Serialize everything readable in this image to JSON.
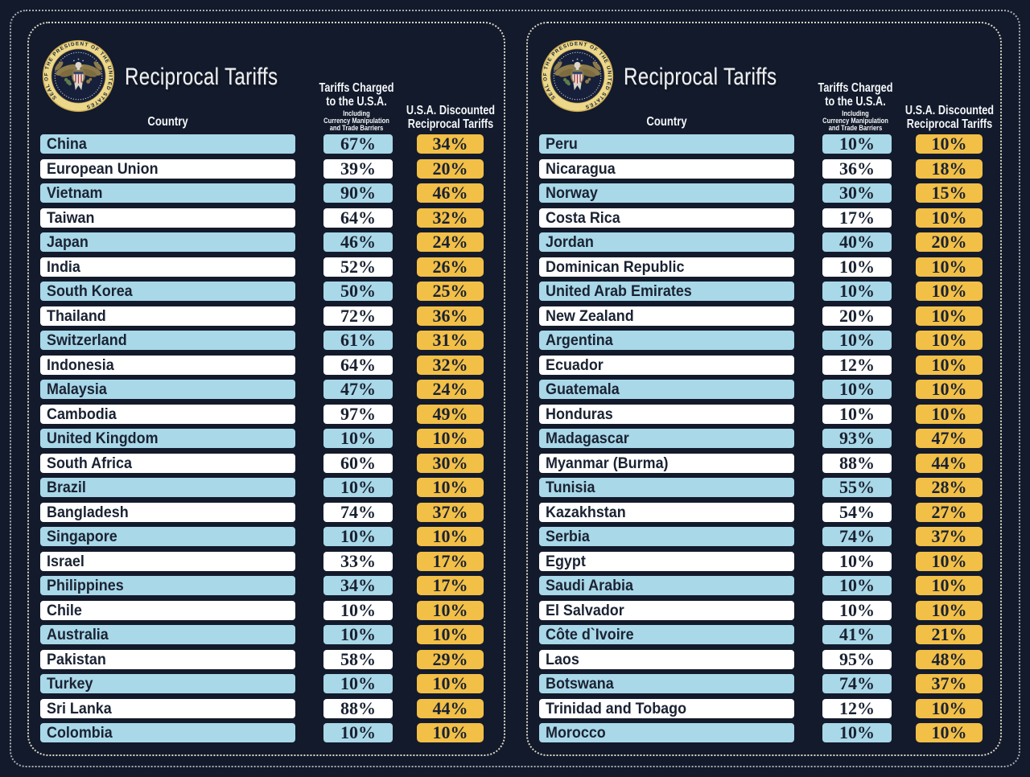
{
  "title": "Reciprocal Tariffs",
  "header": {
    "country": "Country",
    "tariffs_charged": [
      "Tariffs Charged",
      "to the U.S.A."
    ],
    "tariffs_charged_sub": [
      "Including",
      "Currency Manipulation",
      "and Trade Barriers"
    ],
    "discounted": [
      "U.S.A. Discounted",
      "Reciprocal Tariffs"
    ]
  },
  "seal": {
    "ring_text": "SEAL OF THE PRESIDENT OF THE UNITED STATES"
  },
  "colors": {
    "background": "#121a2b",
    "row_blue": "#a9d8e8",
    "row_white": "#ffffff",
    "gold": "#f2bf47",
    "text_navy": "#1a2232",
    "title_silver": "#eef0f2"
  },
  "chart_data": [
    {
      "type": "table",
      "title": "Reciprocal Tariffs",
      "columns": [
        "Country",
        "Tariffs Charged to the U.S.A. Including Currency Manipulation and Trade Barriers",
        "U.S.A. Discounted Reciprocal Tariffs"
      ],
      "rows": [
        [
          "China",
          "67%",
          "34%"
        ],
        [
          "European Union",
          "39%",
          "20%"
        ],
        [
          "Vietnam",
          "90%",
          "46%"
        ],
        [
          "Taiwan",
          "64%",
          "32%"
        ],
        [
          "Japan",
          "46%",
          "24%"
        ],
        [
          "India",
          "52%",
          "26%"
        ],
        [
          "South Korea",
          "50%",
          "25%"
        ],
        [
          "Thailand",
          "72%",
          "36%"
        ],
        [
          "Switzerland",
          "61%",
          "31%"
        ],
        [
          "Indonesia",
          "64%",
          "32%"
        ],
        [
          "Malaysia",
          "47%",
          "24%"
        ],
        [
          "Cambodia",
          "97%",
          "49%"
        ],
        [
          "United Kingdom",
          "10%",
          "10%"
        ],
        [
          "South Africa",
          "60%",
          "30%"
        ],
        [
          "Brazil",
          "10%",
          "10%"
        ],
        [
          "Bangladesh",
          "74%",
          "37%"
        ],
        [
          "Singapore",
          "10%",
          "10%"
        ],
        [
          "Israel",
          "33%",
          "17%"
        ],
        [
          "Philippines",
          "34%",
          "17%"
        ],
        [
          "Chile",
          "10%",
          "10%"
        ],
        [
          "Australia",
          "10%",
          "10%"
        ],
        [
          "Pakistan",
          "58%",
          "29%"
        ],
        [
          "Turkey",
          "10%",
          "10%"
        ],
        [
          "Sri Lanka",
          "88%",
          "44%"
        ],
        [
          "Colombia",
          "10%",
          "10%"
        ]
      ]
    },
    {
      "type": "table",
      "title": "Reciprocal Tariffs",
      "columns": [
        "Country",
        "Tariffs Charged to the U.S.A. Including Currency Manipulation and Trade Barriers",
        "U.S.A. Discounted Reciprocal Tariffs"
      ],
      "rows": [
        [
          "Peru",
          "10%",
          "10%"
        ],
        [
          "Nicaragua",
          "36%",
          "18%"
        ],
        [
          "Norway",
          "30%",
          "15%"
        ],
        [
          "Costa Rica",
          "17%",
          "10%"
        ],
        [
          "Jordan",
          "40%",
          "20%"
        ],
        [
          "Dominican Republic",
          "10%",
          "10%"
        ],
        [
          "United Arab Emirates",
          "10%",
          "10%"
        ],
        [
          "New Zealand",
          "20%",
          "10%"
        ],
        [
          "Argentina",
          "10%",
          "10%"
        ],
        [
          "Ecuador",
          "12%",
          "10%"
        ],
        [
          "Guatemala",
          "10%",
          "10%"
        ],
        [
          "Honduras",
          "10%",
          "10%"
        ],
        [
          "Madagascar",
          "93%",
          "47%"
        ],
        [
          "Myanmar (Burma)",
          "88%",
          "44%"
        ],
        [
          "Tunisia",
          "55%",
          "28%"
        ],
        [
          "Kazakhstan",
          "54%",
          "27%"
        ],
        [
          "Serbia",
          "74%",
          "37%"
        ],
        [
          "Egypt",
          "10%",
          "10%"
        ],
        [
          "Saudi Arabia",
          "10%",
          "10%"
        ],
        [
          "El Salvador",
          "10%",
          "10%"
        ],
        [
          "Côte d`Ivoire",
          "41%",
          "21%"
        ],
        [
          "Laos",
          "95%",
          "48%"
        ],
        [
          "Botswana",
          "74%",
          "37%"
        ],
        [
          "Trinidad and Tobago",
          "12%",
          "10%"
        ],
        [
          "Morocco",
          "10%",
          "10%"
        ]
      ]
    }
  ]
}
